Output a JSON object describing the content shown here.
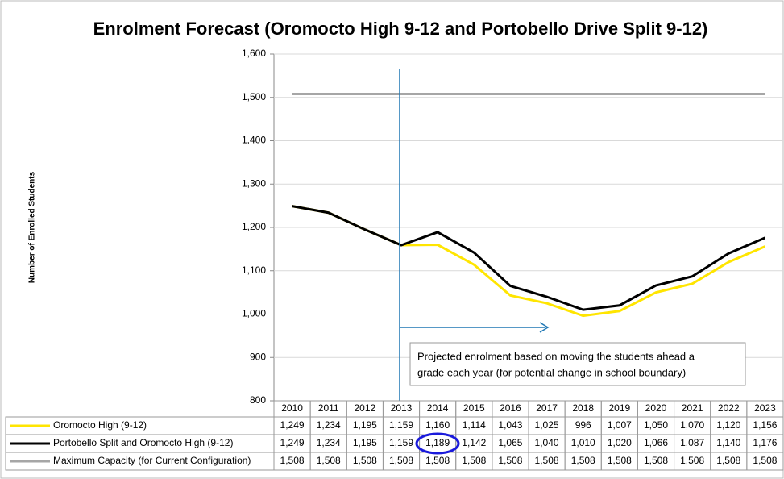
{
  "chart_data": {
    "type": "line",
    "title": "Enrolment Forecast (Oromocto High 9-12 and Portobello Drive Split 9-12)",
    "y_label": "Number of Enrolled Students",
    "annotation": [
      "Projected enrolment based on moving the students ahead a",
      "grade each year (for potential change in school boundary)"
    ],
    "categories": [
      "2010",
      "2011",
      "2012",
      "2013",
      "2014",
      "2015",
      "2016",
      "2017",
      "2018",
      "2019",
      "2020",
      "2021",
      "2022",
      "2023"
    ],
    "ylim": [
      800,
      1600
    ],
    "yticks": [
      {
        "value": 800,
        "label": "800"
      },
      {
        "value": 900,
        "label": "900"
      },
      {
        "value": 1000,
        "label": "1,000"
      },
      {
        "value": 1100,
        "label": "1,100"
      },
      {
        "value": 1200,
        "label": "1,200"
      },
      {
        "value": 1300,
        "label": "1,300"
      },
      {
        "value": 1400,
        "label": "1,400"
      },
      {
        "value": 1500,
        "label": "1,500"
      },
      {
        "value": 1600,
        "label": "1,600"
      }
    ],
    "grid": true,
    "series": [
      {
        "name": "Oromocto High (9-12)",
        "color": "#ffe500",
        "values": [
          1249,
          1234,
          1195,
          1159,
          1160,
          1114,
          1043,
          1025,
          996,
          1007,
          1050,
          1070,
          1120,
          1156
        ],
        "value_labels": [
          "1,249",
          "1,234",
          "1,195",
          "1,159",
          "1,160",
          "1,114",
          "1,043",
          "1,025",
          "996",
          "1,007",
          "1,050",
          "1,070",
          "1,120",
          "1,156"
        ]
      },
      {
        "name": "Portobello Split and Oromocto High (9-12)",
        "color": "#000000",
        "values": [
          1249,
          1234,
          1195,
          1159,
          1189,
          1142,
          1065,
          1040,
          1010,
          1020,
          1066,
          1087,
          1140,
          1176
        ],
        "value_labels": [
          "1,249",
          "1,234",
          "1,195",
          "1,159",
          "1,189",
          "1,142",
          "1,065",
          "1,040",
          "1,010",
          "1,020",
          "1,066",
          "1,087",
          "1,140",
          "1,176"
        ]
      },
      {
        "name": "Maximum Capacity (for Current Configuration)",
        "color": "#a6a6a6",
        "values": [
          1508,
          1508,
          1508,
          1508,
          1508,
          1508,
          1508,
          1508,
          1508,
          1508,
          1508,
          1508,
          1508,
          1508
        ],
        "value_labels": [
          "1,508",
          "1,508",
          "1,508",
          "1,508",
          "1,508",
          "1,508",
          "1,508",
          "1,508",
          "1,508",
          "1,508",
          "1,508",
          "1,508",
          "1,508",
          "1,508"
        ]
      }
    ]
  }
}
